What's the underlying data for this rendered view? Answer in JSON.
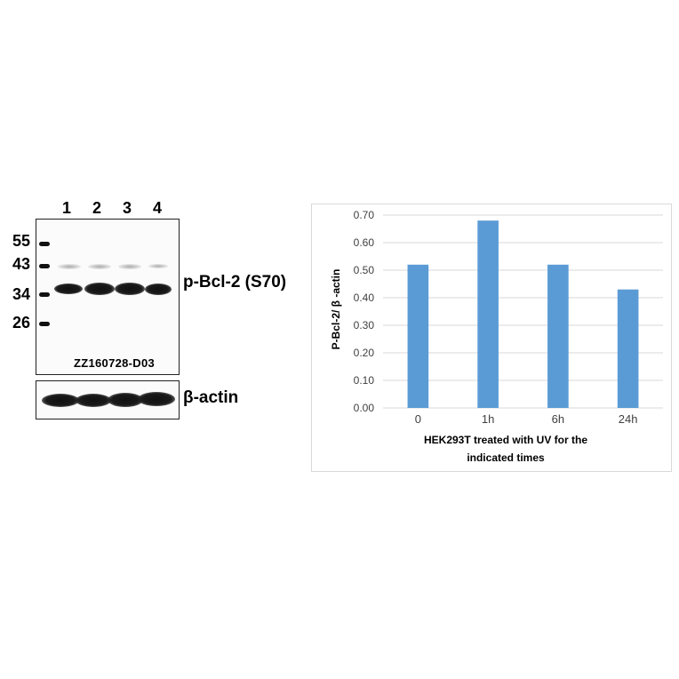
{
  "blot": {
    "lanes": [
      "1",
      "2",
      "3",
      "4"
    ],
    "mw_markers": [
      "55",
      "43",
      "34",
      "26"
    ],
    "target_label": "p-Bcl-2 (S70)",
    "loading_label": "β-actin",
    "code": "ZZ160728-D03"
  },
  "chart_data": {
    "type": "bar",
    "categories": [
      "0",
      "1h",
      "6h",
      "24h"
    ],
    "values": [
      0.52,
      0.68,
      0.52,
      0.43
    ],
    "ylabel": "P-Bcl-2/ β -actin",
    "xlabel_line1": "HEK293T treated with UV for the",
    "xlabel_line2": "indicated times",
    "ylim": [
      0,
      0.7
    ],
    "yticks": [
      "0.00",
      "0.10",
      "0.20",
      "0.30",
      "0.40",
      "0.50",
      "0.60",
      "0.70"
    ],
    "grid": true,
    "bar_color": "#5b9bd5"
  }
}
